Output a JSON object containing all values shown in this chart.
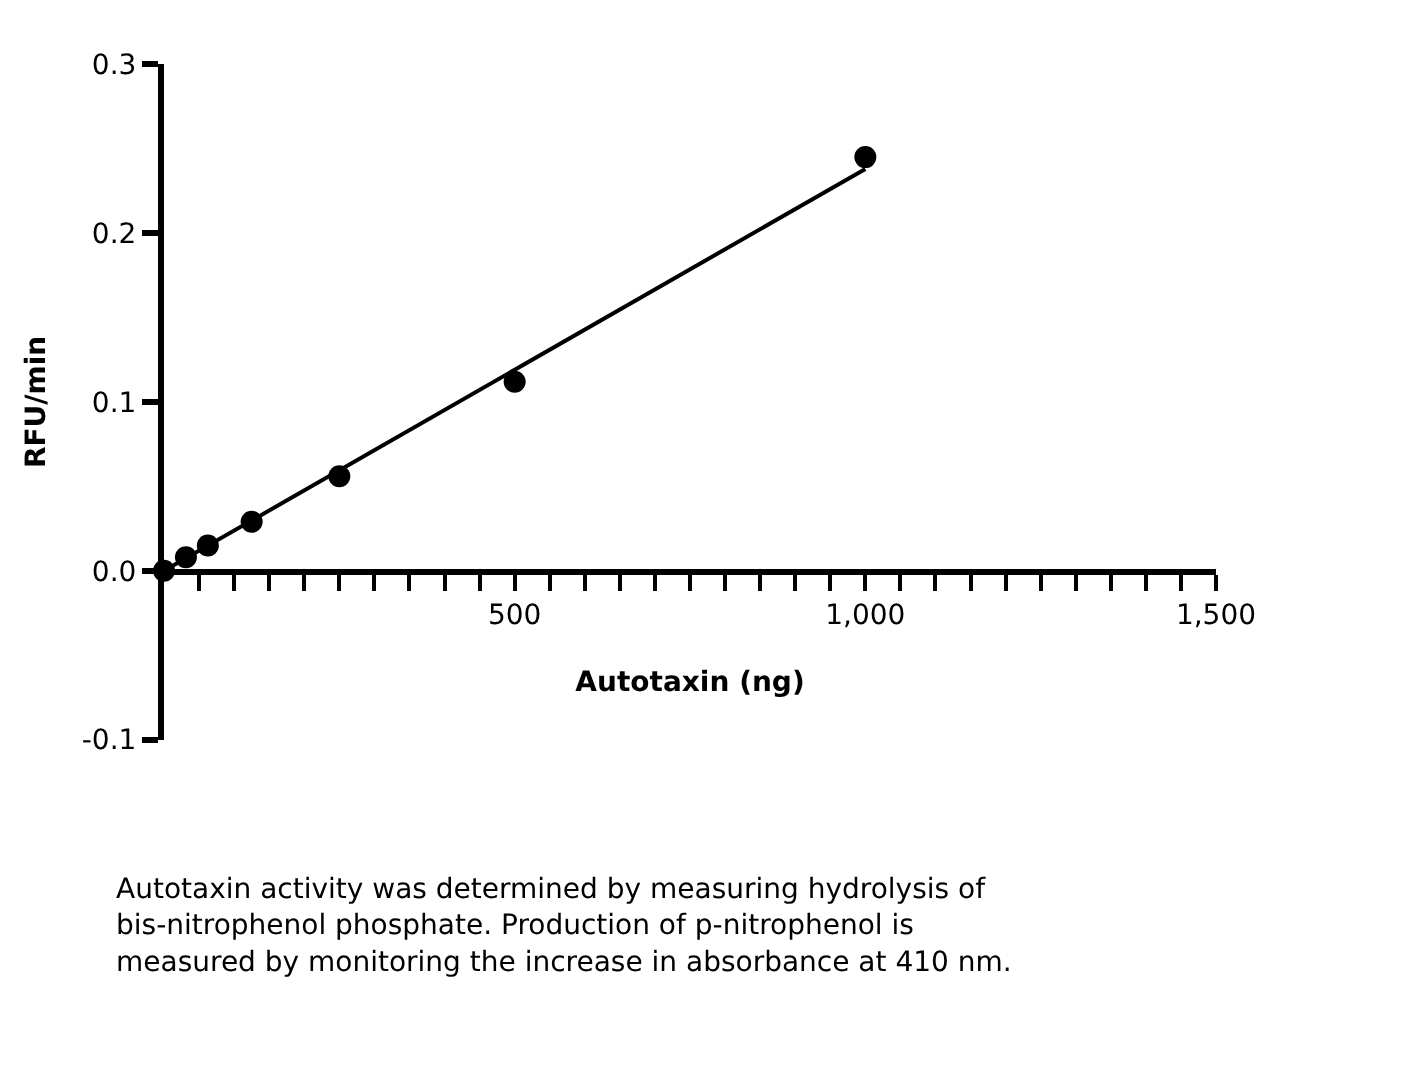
{
  "chart_data": {
    "type": "scatter",
    "xlabel": "Autotaxin (ng)",
    "ylabel": "RFU/min",
    "x": [
      0,
      15.6,
      31.25,
      62.5,
      125,
      250,
      500,
      1000
    ],
    "series": [
      {
        "color": "#000000",
        "marker": "circle",
        "values": [
          0.0,
          null,
          0.008,
          0.015,
          0.029,
          0.056,
          0.112,
          0.245
        ]
      },
      {
        "type": "line",
        "color": "#000000",
        "marker": "none",
        "x": [
          0,
          1000
        ],
        "values": [
          0.0,
          0.238
        ]
      }
    ],
    "xlim": [
      0,
      1500
    ],
    "ylim": [
      -0.1,
      0.3
    ],
    "xticks": [
      {
        "value": 50,
        "label": null
      },
      {
        "value": 100,
        "label": null
      },
      {
        "value": 150,
        "label": null
      },
      {
        "value": 200,
        "label": null
      },
      {
        "value": 250,
        "label": null
      },
      {
        "value": 300,
        "label": null
      },
      {
        "value": 350,
        "label": null
      },
      {
        "value": 400,
        "label": null
      },
      {
        "value": 450,
        "label": null
      },
      {
        "value": 500,
        "label": "500"
      },
      {
        "value": 550,
        "label": null
      },
      {
        "value": 600,
        "label": null
      },
      {
        "value": 650,
        "label": null
      },
      {
        "value": 700,
        "label": null
      },
      {
        "value": 750,
        "label": null
      },
      {
        "value": 800,
        "label": null
      },
      {
        "value": 850,
        "label": null
      },
      {
        "value": 900,
        "label": null
      },
      {
        "value": 950,
        "label": null
      },
      {
        "value": 1000,
        "label": "1,000"
      },
      {
        "value": 1050,
        "label": null
      },
      {
        "value": 1100,
        "label": null
      },
      {
        "value": 1150,
        "label": null
      },
      {
        "value": 1200,
        "label": null
      },
      {
        "value": 1250,
        "label": null
      },
      {
        "value": 1300,
        "label": null
      },
      {
        "value": 1350,
        "label": null
      },
      {
        "value": 1400,
        "label": null
      },
      {
        "value": 1450,
        "label": null
      },
      {
        "value": 1500,
        "label": "1,500"
      }
    ],
    "yticks": [
      {
        "value": -0.1,
        "label": "-0.1"
      },
      {
        "value": 0,
        "label": "0.0"
      },
      {
        "value": 0.1,
        "label": "0.1"
      },
      {
        "value": 0.2,
        "label": "0.2"
      },
      {
        "value": 0.3,
        "label": "0.3"
      }
    ],
    "line_style": "solid",
    "annotations": [
      "Autotaxin activity was determined by measuring hydrolysis of bis-nitrophenol phosphate. Production of p-nitrophenol is measured by monitoring the increase in absorbance at 410 nm."
    ]
  }
}
